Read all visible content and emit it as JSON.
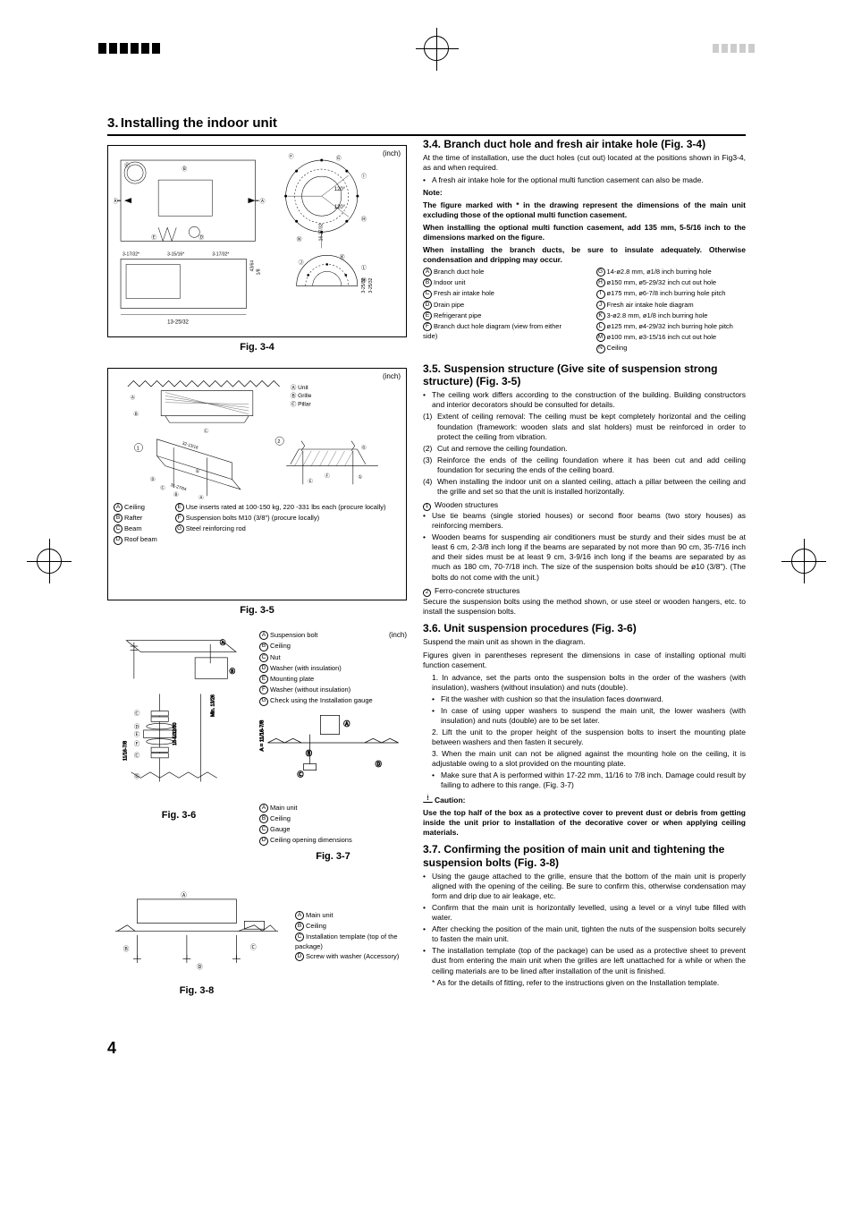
{
  "page_number": "4",
  "header": {
    "number": "3.",
    "title": "Installing the indoor unit"
  },
  "inch_unit": "(inch)",
  "fig_labels": {
    "f34": "Fig. 3-4",
    "f35": "Fig. 3-5",
    "f36": "Fig. 3-6",
    "f37": "Fig. 3-7",
    "f38": "Fig. 3-8"
  },
  "fig34_dims": {
    "angle1": "120°",
    "angle2": "120°",
    "vdim": "16-27/32",
    "bot_w": "13-25/32",
    "h_a": "3-17/32*",
    "h_b": "3-15/16*",
    "h_c": "3-17/32*",
    "r1": "43/64",
    "r2": "1/8",
    "r3": "3-25/32",
    "r4": "3-25/32"
  },
  "fig35_top": {
    "A": "Unit",
    "B": "Grille",
    "C": "Pillar",
    "d1": "32-13/16",
    "d2": "31-27/64"
  },
  "fig35_bottom_left": {
    "A": "Ceiling",
    "B": "Rafter",
    "C": "Beam",
    "D": "Roof beam"
  },
  "fig35_bottom_right": {
    "E": "Use inserts rated at 100-150 kg, 220 -331 lbs each (procure locally)",
    "F": "Suspension bolts M10 (3/8\") (procure locally)",
    "G": "Steel reinforcing rod"
  },
  "fig36_labels": {
    "A": "Suspension bolt",
    "B": "Ceiling",
    "C": "Nut",
    "D": "Washer (with insulation)",
    "E": "Mounting plate",
    "F": "Washer (without insulation)",
    "G": "Check using the Installation gauge",
    "d1": "Min. 13/26",
    "d2": "18-5/32/80",
    "d3": "11/16-7/8"
  },
  "fig37_labels": {
    "A": "Main unit",
    "B": "Ceiling",
    "C": "Gauge",
    "D": "Ceiling opening dimensions",
    "d1": "A = 11/16-7/8"
  },
  "fig38_labels": {
    "A": "Main unit",
    "B": "Ceiling",
    "C": "Installation template (top of the package)",
    "D": "Screw with washer (Accessory)"
  },
  "sec34": {
    "title": "3.4. Branch duct hole and fresh air intake hole (Fig. 3-4)",
    "p1": "At the time of installation, use the duct holes (cut out) located at the positions shown in Fig3-4, as and when required.",
    "b1": "A fresh air intake hole for the optional multi function casement can also be made.",
    "note_label": "Note:",
    "note1": "The figure marked with * in the drawing represent the dimensions of the main unit excluding those of the optional multi function casement.",
    "note2": "When installing the optional multi function casement, add 135 mm, 5-5/16 inch to the dimensions marked on the figure.",
    "note3": "When installing the branch ducts, be sure to insulate adequately. Otherwise condensation and dripping may occur.",
    "keys_left": [
      {
        "k": "A",
        "v": "Branch duct hole"
      },
      {
        "k": "B",
        "v": "Indoor unit"
      },
      {
        "k": "C",
        "v": "Fresh air intake hole"
      },
      {
        "k": "D",
        "v": "Drain pipe"
      },
      {
        "k": "E",
        "v": "Refrigerant pipe"
      },
      {
        "k": "F",
        "v": "Branch duct hole diagram (view from either side)"
      }
    ],
    "keys_right": [
      {
        "k": "G",
        "v": "14-ø2.8 mm, ø1/8 inch burring hole"
      },
      {
        "k": "H",
        "v": "ø150 mm, ø5-29/32 inch cut out hole"
      },
      {
        "k": "I",
        "v": "ø175 mm, ø6-7/8 inch burring hole pitch"
      },
      {
        "k": "J",
        "v": "Fresh air intake hole diagram"
      },
      {
        "k": "K",
        "v": "3-ø2.8 mm, ø1/8 inch burring hole"
      },
      {
        "k": "L",
        "v": "ø125 mm, ø4-29/32 inch burring hole pitch"
      },
      {
        "k": "M",
        "v": "ø100 mm, ø3-15/16 inch cut out hole"
      },
      {
        "k": "N",
        "v": "Ceiling"
      }
    ]
  },
  "sec35": {
    "title": "3.5. Suspension structure (Give site of suspension strong structure) (Fig. 3-5)",
    "b1": "The ceiling work differs according to the construction of the building. Building constructors and interior decorators should be consulted for details.",
    "items": [
      "Extent of ceiling removal: The ceiling must be kept completely horizontal and the ceiling foundation (framework: wooden slats and slat holders) must be reinforced in order to protect the ceiling from vibration.",
      "Cut and remove the ceiling foundation.",
      "Reinforce the ends of the ceiling foundation where it has been cut and add ceiling foundation for securing the ends of the ceiling board.",
      "When installing the indoor unit on a slanted ceiling, attach a pillar between the ceiling and the grille and set so that the unit is installed horizontally."
    ],
    "sub1_label": "Wooden structures",
    "sub1_bullets": [
      "Use tie beams (single storied houses) or second floor beams (two story houses) as reinforcing members.",
      "Wooden beams for suspending air conditioners must be sturdy and their sides must be at least 6 cm, 2-3/8 inch long if the beams are separated by not more than 90 cm, 35-7/16 inch and their sides must be at least 9 cm, 3-9/16 inch long if the beams are separated by as much as 180 cm, 70-7/18 inch. The size of the suspension bolts should be ø10 (3/8\"). (The bolts do not come with the unit.)"
    ],
    "sub2_label": "Ferro-concrete structures",
    "sub2_p": "Secure the suspension bolts using the method shown, or use steel or wooden hangers, etc. to install the suspension bolts."
  },
  "sec36": {
    "title": "3.6. Unit suspension procedures (Fig. 3-6)",
    "p1": "Suspend the main unit as shown in the diagram.",
    "p2": "Figures given in parentheses represent the dimensions in case of installing optional multi function casement.",
    "n1": "In advance, set the parts onto the suspension bolts in the order of the washers (with insulation), washers (without insulation) and nuts (double).",
    "n1b": [
      "Fit the washer with cushion so that the insulation faces downward.",
      "In case of using upper washers to suspend the main unit, the lower washers (with insulation) and nuts (double) are to be set later."
    ],
    "n2": "Lift the unit to the proper height of the suspension bolts to insert the mounting plate between washers and then fasten it securely.",
    "n3": "When the main unit can not be aligned against the mounting hole on the ceiling, it is adjustable owing to a slot provided on the mounting plate.",
    "n3b": "Make sure that A is performed within 17-22 mm, 11/16 to 7/8 inch. Damage could result by failing to adhere to this range. (Fig. 3-7)",
    "caution_label": "Caution:",
    "caution_text": "Use the top half of the box as a protective cover to prevent dust or debris from getting inside the unit prior to installation of the decorative cover or when applying ceiling materials."
  },
  "sec37": {
    "title": "3.7. Confirming the position of main unit and tightening the suspension bolts (Fig. 3-8)",
    "bullets": [
      "Using the gauge attached to the grille, ensure that the bottom of the main unit is properly aligned with the opening of the ceiling. Be sure to confirm this, otherwise condensation may form and drip due to air leakage, etc.",
      "Confirm that the main unit is horizontally levelled, using a level or a vinyl tube filled with water.",
      "After checking the position of the main unit, tighten the nuts of the suspension bolts securely to fasten the main unit.",
      "The installation template (top of the package) can be used as a protective sheet to prevent dust from entering the main unit when the grilles are left unattached for a while or when the ceiling materials are to be lined after installation of the unit is finished."
    ],
    "star": "As for the details of fitting, refer to the instructions given on the Installation template."
  }
}
